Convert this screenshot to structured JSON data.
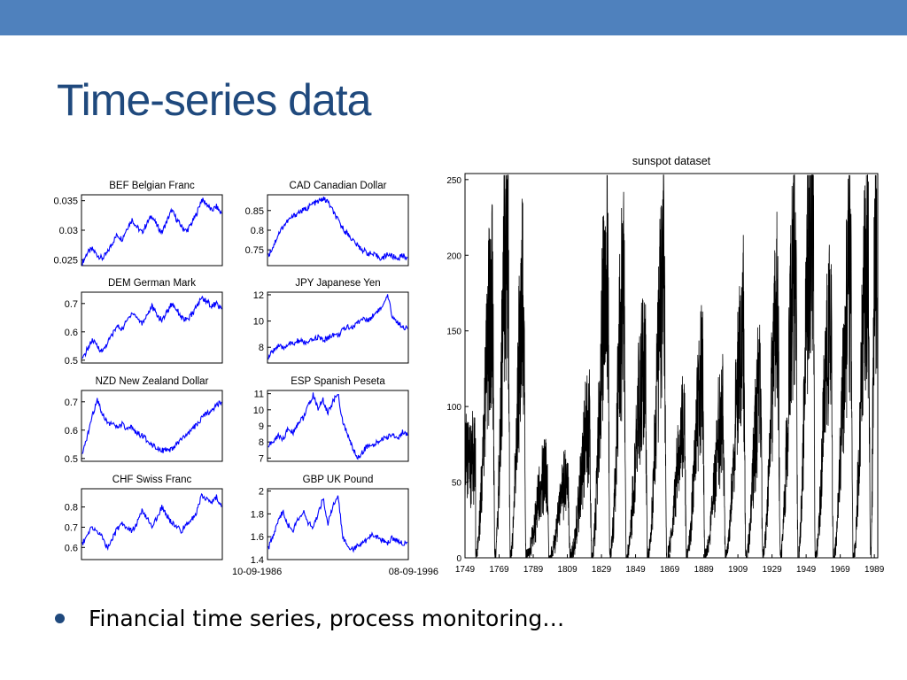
{
  "slide": {
    "title": "Time-series data",
    "bullet": "Financial time series, process monitoring…",
    "accent_color": "#4f81bd",
    "title_color": "#1f497d"
  },
  "chart_data": [
    {
      "type": "line",
      "title": "BEF Belgian Franc",
      "color": "#0000ff",
      "ylim": [
        0.024,
        0.036
      ],
      "yticks": [
        "0.025",
        "0.03",
        "0.035"
      ],
      "ytick_values": [
        0.025,
        0.03,
        0.035
      ],
      "values": [
        0.0245,
        0.0262,
        0.0268,
        0.0258,
        0.0252,
        0.0261,
        0.0278,
        0.0292,
        0.0285,
        0.0304,
        0.0318,
        0.0305,
        0.0296,
        0.0312,
        0.0325,
        0.0308,
        0.0296,
        0.0315,
        0.0334,
        0.0318,
        0.0306,
        0.0298,
        0.0312,
        0.0328,
        0.0352,
        0.0345,
        0.0333,
        0.034,
        0.0328
      ]
    },
    {
      "type": "line",
      "title": "CAD Canadian Dollar",
      "color": "#0000ff",
      "ylim": [
        0.71,
        0.89
      ],
      "yticks": [
        "0.75",
        "0.8",
        "0.85"
      ],
      "ytick_values": [
        0.75,
        0.8,
        0.85
      ],
      "values": [
        0.735,
        0.76,
        0.79,
        0.81,
        0.825,
        0.835,
        0.845,
        0.85,
        0.858,
        0.868,
        0.872,
        0.88,
        0.872,
        0.848,
        0.825,
        0.805,
        0.79,
        0.775,
        0.76,
        0.75,
        0.742,
        0.738,
        0.733,
        0.728,
        0.74,
        0.733,
        0.728,
        0.735,
        0.732
      ]
    },
    {
      "type": "line",
      "title": "DEM German Mark",
      "color": "#0000ff",
      "ylim": [
        0.49,
        0.74
      ],
      "yticks": [
        "0.5",
        "0.6",
        "0.7"
      ],
      "ytick_values": [
        0.5,
        0.6,
        0.7
      ],
      "values": [
        0.5,
        0.54,
        0.57,
        0.55,
        0.53,
        0.56,
        0.59,
        0.62,
        0.61,
        0.64,
        0.67,
        0.65,
        0.63,
        0.66,
        0.69,
        0.66,
        0.64,
        0.67,
        0.7,
        0.68,
        0.65,
        0.64,
        0.66,
        0.69,
        0.72,
        0.71,
        0.69,
        0.7,
        0.68
      ]
    },
    {
      "type": "line",
      "title": "JPY Japanese Yen",
      "color": "#0000ff",
      "ylim": [
        6.8,
        12.2
      ],
      "yticks": [
        "8",
        "10",
        "12"
      ],
      "ytick_values": [
        8,
        10,
        12
      ],
      "values": [
        7.2,
        7.8,
        8.1,
        7.9,
        8.3,
        8.2,
        8.5,
        8.4,
        8.3,
        8.6,
        8.8,
        8.5,
        8.7,
        9.0,
        8.9,
        9.3,
        9.6,
        9.5,
        9.9,
        10.2,
        10.0,
        10.4,
        10.8,
        11.0,
        11.9,
        10.3,
        9.9,
        9.6,
        9.4
      ]
    },
    {
      "type": "line",
      "title": "NZD New Zealand Dollar",
      "color": "#0000ff",
      "ylim": [
        0.49,
        0.74
      ],
      "yticks": [
        "0.5",
        "0.6",
        "0.7"
      ],
      "ytick_values": [
        0.5,
        0.6,
        0.7
      ],
      "values": [
        0.51,
        0.58,
        0.65,
        0.71,
        0.66,
        0.63,
        0.62,
        0.61,
        0.62,
        0.6,
        0.61,
        0.59,
        0.58,
        0.565,
        0.55,
        0.54,
        0.53,
        0.525,
        0.53,
        0.55,
        0.57,
        0.58,
        0.6,
        0.62,
        0.64,
        0.66,
        0.67,
        0.69,
        0.7
      ]
    },
    {
      "type": "line",
      "title": "ESP Spanish Peseta",
      "color": "#0000ff",
      "ylim": [
        6.8,
        11.2
      ],
      "yticks": [
        "7",
        "8",
        "9",
        "10",
        "11"
      ],
      "ytick_values": [
        7,
        8,
        9,
        10,
        11
      ],
      "values": [
        7.8,
        8.0,
        8.4,
        8.2,
        8.8,
        8.6,
        9.2,
        9.5,
        10.2,
        10.9,
        10.1,
        10.6,
        9.8,
        10.5,
        11.0,
        9.2,
        8.4,
        7.6,
        7.0,
        7.4,
        7.8,
        7.7,
        8.0,
        8.2,
        8.3,
        8.5,
        8.2,
        8.6,
        8.4
      ]
    },
    {
      "type": "line",
      "title": "CHF Swiss Franc",
      "color": "#0000ff",
      "ylim": [
        0.54,
        0.89
      ],
      "yticks": [
        "0.6",
        "0.7",
        "0.8"
      ],
      "ytick_values": [
        0.6,
        0.7,
        0.8
      ],
      "values": [
        0.62,
        0.66,
        0.7,
        0.68,
        0.65,
        0.6,
        0.64,
        0.69,
        0.72,
        0.7,
        0.68,
        0.72,
        0.78,
        0.74,
        0.71,
        0.74,
        0.8,
        0.76,
        0.72,
        0.7,
        0.68,
        0.72,
        0.74,
        0.77,
        0.86,
        0.84,
        0.82,
        0.85,
        0.8
      ]
    },
    {
      "type": "line",
      "title": "GBP UK Pound",
      "color": "#0000ff",
      "ylim": [
        1.4,
        2.02
      ],
      "yticks": [
        "1.4",
        "1.6",
        "1.8",
        "2"
      ],
      "ytick_values": [
        1.4,
        1.6,
        1.8,
        2.0
      ],
      "x_start_label": "10-09-1986",
      "x_end_label": "08-09-1996",
      "values": [
        1.5,
        1.62,
        1.75,
        1.82,
        1.7,
        1.66,
        1.76,
        1.82,
        1.72,
        1.68,
        1.8,
        1.94,
        1.72,
        1.86,
        1.96,
        1.6,
        1.52,
        1.49,
        1.52,
        1.54,
        1.58,
        1.62,
        1.6,
        1.57,
        1.55,
        1.59,
        1.56,
        1.54,
        1.55
      ]
    },
    {
      "type": "line",
      "title": "sunspot dataset",
      "color": "#000000",
      "xlim": [
        1749,
        1991
      ],
      "ylim": [
        0,
        254
      ],
      "yticks": [
        "0",
        "50",
        "100",
        "150",
        "200",
        "250"
      ],
      "ytick_values": [
        0,
        50,
        100,
        150,
        200,
        250
      ],
      "xticks": [
        "1749",
        "1769",
        "1789",
        "1809",
        "1829",
        "1849",
        "1869",
        "1889",
        "1909",
        "1929",
        "1949",
        "1969",
        "1989"
      ],
      "xtick_values": [
        1749,
        1769,
        1789,
        1809,
        1829,
        1849,
        1869,
        1889,
        1909,
        1929,
        1949,
        1969,
        1989
      ],
      "cycle_minima": [
        1755.2,
        1766.5,
        1775.5,
        1784.7,
        1798.3,
        1810.6,
        1823.3,
        1833.9,
        1843.5,
        1856.0,
        1867.2,
        1878.9,
        1889.6,
        1901.7,
        1913.6,
        1923.6,
        1933.8,
        1944.2,
        1954.3,
        1964.9,
        1976.5,
        1986.8
      ],
      "cycle_maxima": [
        {
          "year": 1761.5,
          "value": 150
        },
        {
          "year": 1769.7,
          "value": 175
        },
        {
          "year": 1778.4,
          "value": 230
        },
        {
          "year": 1788.1,
          "value": 175
        },
        {
          "year": 1805.2,
          "value": 60
        },
        {
          "year": 1816.4,
          "value": 55
        },
        {
          "year": 1829.9,
          "value": 90
        },
        {
          "year": 1837.2,
          "value": 205
        },
        {
          "year": 1848.1,
          "value": 175
        },
        {
          "year": 1860.1,
          "value": 140
        },
        {
          "year": 1870.6,
          "value": 185
        },
        {
          "year": 1883.9,
          "value": 95
        },
        {
          "year": 1894.1,
          "value": 125
        },
        {
          "year": 1907.0,
          "value": 95
        },
        {
          "year": 1917.6,
          "value": 155
        },
        {
          "year": 1928.4,
          "value": 115
        },
        {
          "year": 1937.4,
          "value": 165
        },
        {
          "year": 1947.5,
          "value": 200
        },
        {
          "year": 1957.9,
          "value": 253
        },
        {
          "year": 1968.9,
          "value": 160
        },
        {
          "year": 1979.9,
          "value": 188
        },
        {
          "year": 1989.6,
          "value": 200
        }
      ]
    }
  ]
}
